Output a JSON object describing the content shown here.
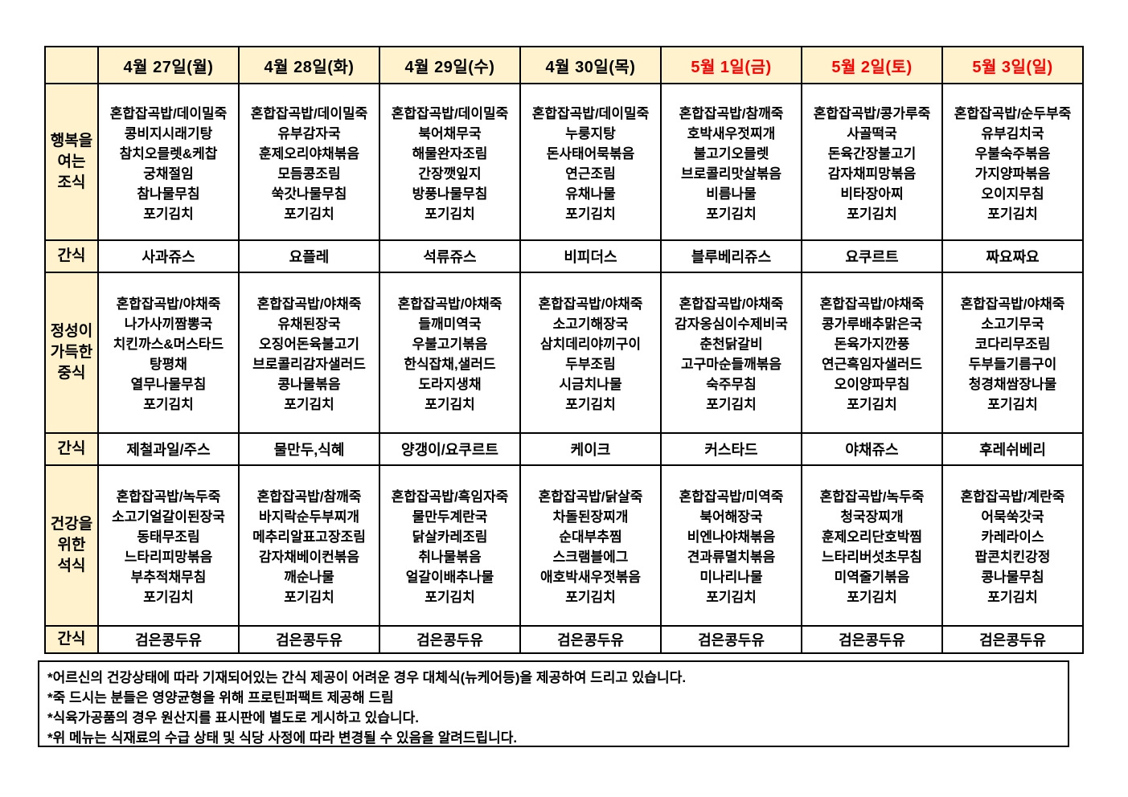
{
  "colors": {
    "header_bg": "#FFF2CC",
    "weekday_date_text": "#000000",
    "holiday_date_text": "#FF0000",
    "body_text": "#000000",
    "border": "#000000"
  },
  "menu_table": {
    "row_labels": {
      "breakfast": [
        "행복을",
        "여는",
        "조식"
      ],
      "snack": "간식",
      "lunch": [
        "정성이",
        "가득한",
        "중식"
      ],
      "dinner": [
        "건강을",
        "위한",
        "석식"
      ]
    },
    "days": [
      {
        "date": "4월 27일(월)",
        "holiday": false,
        "breakfast": [
          "혼합잡곡밥/데이밀죽",
          "콩비지시래기탕",
          "참치오믈렛&케찹",
          "궁채절임",
          "참나물무침",
          "포기김치"
        ],
        "snack1": "사과쥬스",
        "lunch": [
          "혼합잡곡밥/야채죽",
          "나가사끼짬뽕국",
          "치킨까스&머스타드",
          "탕평채",
          "열무나물무침",
          "포기김치"
        ],
        "snack2": "제철과일/주스",
        "dinner": [
          "혼합잡곡밥/녹두죽",
          "소고기얼갈이된장국",
          "동태무조림",
          "느타리피망볶음",
          "부추적채무침",
          "포기김치"
        ],
        "snack3": "검은콩두유"
      },
      {
        "date": "4월 28일(화)",
        "holiday": false,
        "breakfast": [
          "혼합잡곡밥/데이밀죽",
          "유부감자국",
          "훈제오리야채볶음",
          "모듬콩조림",
          "쑥갓나물무침",
          "포기김치"
        ],
        "snack1": "요플레",
        "lunch": [
          "혼합잡곡밥/야채죽",
          "유채된장국",
          "오징어돈육불고기",
          "브로콜리감자샐러드",
          "콩나물볶음",
          "포기김치"
        ],
        "snack2": "물만두,식혜",
        "dinner": [
          "혼합잡곡밥/참깨죽",
          "바지락순두부찌개",
          "메추리알표고장조림",
          "감자채베이컨볶음",
          "깨순나물",
          "포기김치"
        ],
        "snack3": "검은콩두유"
      },
      {
        "date": "4월 29일(수)",
        "holiday": false,
        "breakfast": [
          "혼합잡곡밥/데이밀죽",
          "북어채무국",
          "해물완자조림",
          "간장깻잎지",
          "방풍나물무침",
          "포기김치"
        ],
        "snack1": "석류쥬스",
        "lunch": [
          "혼합잡곡밥/야채죽",
          "들깨미역국",
          "우불고기볶음",
          "한식잡채,샐러드",
          "도라지생채",
          "포기김치"
        ],
        "snack2": "양갱이/요쿠르트",
        "dinner": [
          "혼합잡곡밥/흑임자죽",
          "물만두계란국",
          "닭살카레조림",
          "취나물볶음",
          "얼갈이배추나물",
          "포기김치"
        ],
        "snack3": "검은콩두유"
      },
      {
        "date": "4월 30일(목)",
        "holiday": false,
        "breakfast": [
          "혼합잡곡밥/데이밀죽",
          "누룽지탕",
          "돈사태어묵볶음",
          "연근조림",
          "유채나물",
          "포기김치"
        ],
        "snack1": "비피더스",
        "lunch": [
          "혼합잡곡밥/야채죽",
          "소고기해장국",
          "삼치데리야끼구이",
          "두부조림",
          "시금치나물",
          "포기김치"
        ],
        "snack2": "케이크",
        "dinner": [
          "혼합잡곡밥/닭살죽",
          "차돌된장찌개",
          "순대부추찜",
          "스크램블에그",
          "애호박새우젓볶음",
          "포기김치"
        ],
        "snack3": "검은콩두유"
      },
      {
        "date": "5월 1일(금)",
        "holiday": true,
        "breakfast": [
          "혼합잡곡밥/참깨죽",
          "호박새우젓찌개",
          "불고기오믈렛",
          "브로콜리맛살볶음",
          "비름나물",
          "포기김치"
        ],
        "snack1": "블루베리쥬스",
        "lunch": [
          "혼합잡곡밥/야채죽",
          "감자옹심이수제비국",
          "춘천닭갈비",
          "고구마순들깨볶음",
          "숙주무침",
          "포기김치"
        ],
        "snack2": "커스타드",
        "dinner": [
          "혼합잡곡밥/미역죽",
          "북어해장국",
          "비엔나야채볶음",
          "견과류멸치볶음",
          "미나리나물",
          "포기김치"
        ],
        "snack3": "검은콩두유"
      },
      {
        "date": "5월 2일(토)",
        "holiday": true,
        "breakfast": [
          "혼합잡곡밥/콩가루죽",
          "사골떡국",
          "돈육간장불고기",
          "감자채피망볶음",
          "비타장아찌",
          "포기김치"
        ],
        "snack1": "요쿠르트",
        "lunch": [
          "혼합잡곡밥/야채죽",
          "콩가루배추맑은국",
          "돈육가지깐풍",
          "연근흑임자샐러드",
          "오이양파무침",
          "포기김치"
        ],
        "snack2": "야채쥬스",
        "dinner": [
          "혼합잡곡밥/녹두죽",
          "청국장찌개",
          "훈제오리단호박찜",
          "느타리버섯초무침",
          "미역줄기볶음",
          "포기김치"
        ],
        "snack3": "검은콩두유"
      },
      {
        "date": "5월 3일(일)",
        "holiday": true,
        "breakfast": [
          "혼합잡곡밥/순두부죽",
          "유부김치국",
          "우불숙주볶음",
          "가지양파볶음",
          "오이지무침",
          "포기김치"
        ],
        "snack1": "짜요짜요",
        "lunch": [
          "혼합잡곡밥/야채죽",
          "소고기무국",
          "코다리무조림",
          "두부들기름구이",
          "청경채쌈장나물",
          "포기김치"
        ],
        "snack2": "후레쉬베리",
        "dinner": [
          "혼합잡곡밥/계란죽",
          "어묵쑥갓국",
          "카레라이스",
          "팝콘치킨강정",
          "콩나물무침",
          "포기김치"
        ],
        "snack3": "검은콩두유"
      }
    ]
  },
  "notes": [
    "*어르신의 건강상태에 따라 기재되어있는 간식 제공이 어려운 경우 대체식(뉴케어등)을 제공하여 드리고 있습니다.",
    "*죽 드시는 분들은 영양균형을 위해 프로틴퍼팩트 제공해 드림",
    "*식육가공품의 경우 원산지를 표시판에 별도로 게시하고 있습니다.",
    "*위 메뉴는 식재료의 수급 상태 및 식당 사정에 따라 변경될 수 있음을 알려드립니다."
  ]
}
